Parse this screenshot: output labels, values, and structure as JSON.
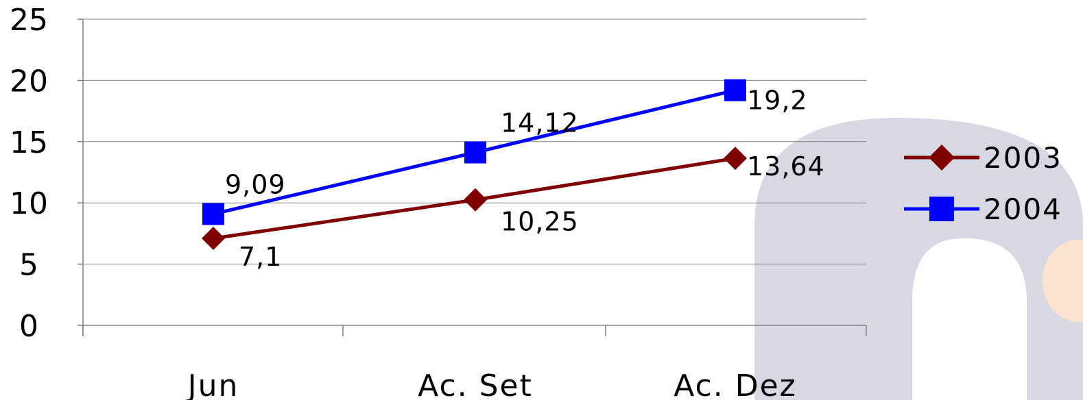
{
  "chart_data": {
    "type": "line",
    "categories": [
      "Jun",
      "Ac. Set",
      "Ac. Dez"
    ],
    "series": [
      {
        "name": "2003",
        "values": [
          7.1,
          10.25,
          13.64
        ],
        "labels": [
          "7,1",
          "10,25",
          "13,64"
        ],
        "color": "#800000",
        "marker": "diamond"
      },
      {
        "name": "2004",
        "values": [
          9.09,
          14.12,
          19.2
        ],
        "labels": [
          "9,09",
          "14,12",
          "19,2"
        ],
        "color": "#0000ff",
        "marker": "square"
      }
    ],
    "y_ticks": [
      "0",
      "5",
      "10",
      "15",
      "20",
      "25"
    ],
    "ylim": [
      0,
      25
    ],
    "grid": true,
    "legend": "right"
  }
}
